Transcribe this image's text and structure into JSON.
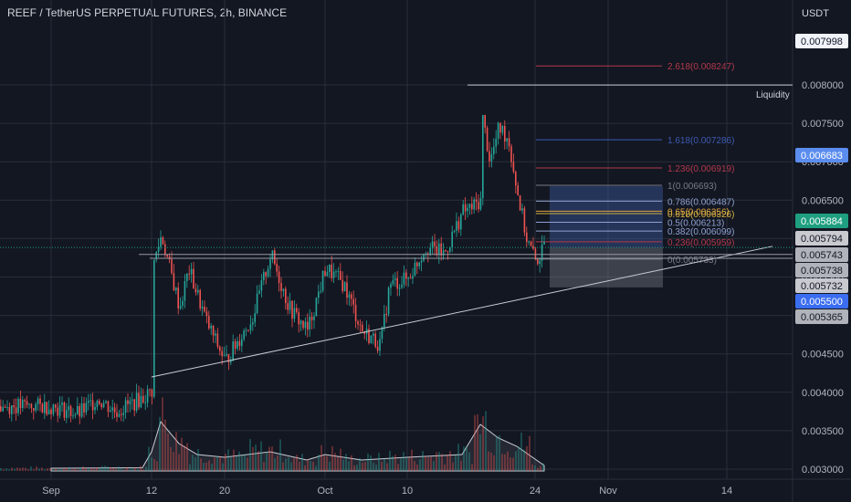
{
  "header": {
    "title": "REEF / TetherUS PERPETUAL FUTURES, 2h, BINANCE",
    "currency": "USDT"
  },
  "chart_data": {
    "type": "candlestick",
    "title": "REEF / TetherUS PERPETUAL FUTURES, 2h, BINANCE",
    "yaxis": {
      "unit": "USDT",
      "ticks": [
        "0.008000",
        "0.007500",
        "0.007000",
        "0.006500",
        "0.006000",
        "0.005500",
        "0.005000",
        "0.004500",
        "0.004000",
        "0.003500",
        "0.003000"
      ],
      "range": [
        0.0029,
        0.00835
      ]
    },
    "xaxis": {
      "ticks": [
        "Sep",
        "12",
        "20",
        "Oct",
        "10",
        "24",
        "Nov",
        "14"
      ]
    },
    "grid": true,
    "price_path": [
      {
        "x": "Sep 1",
        "y": 0.00382
      },
      {
        "x": "Sep 4",
        "y": 0.00372
      },
      {
        "x": "Sep 6",
        "y": 0.00392
      },
      {
        "x": "Sep 8",
        "y": 0.00375
      },
      {
        "x": "Sep 10",
        "y": 0.00387
      },
      {
        "x": "Sep 11",
        "y": 0.00393
      },
      {
        "x": "Sep 12",
        "y": 0.00402
      },
      {
        "x": "Sep 12",
        "y": 0.0056
      },
      {
        "x": "Sep 13",
        "y": 0.00605
      },
      {
        "x": "Sep 15",
        "y": 0.0051
      },
      {
        "x": "Sep 16",
        "y": 0.0056
      },
      {
        "x": "Sep 18",
        "y": 0.0049
      },
      {
        "x": "Sep 20",
        "y": 0.0044
      },
      {
        "x": "Sep 23",
        "y": 0.00498
      },
      {
        "x": "Sep 25",
        "y": 0.0058
      },
      {
        "x": "Sep 27",
        "y": 0.0051
      },
      {
        "x": "Sep 29",
        "y": 0.0048
      },
      {
        "x": "Oct 1",
        "y": 0.00562
      },
      {
        "x": "Oct 3",
        "y": 0.0054
      },
      {
        "x": "Oct 5",
        "y": 0.0048
      },
      {
        "x": "Oct 7",
        "y": 0.00462
      },
      {
        "x": "Oct 8",
        "y": 0.0054
      },
      {
        "x": "Oct 10",
        "y": 0.00548
      },
      {
        "x": "Oct 12",
        "y": 0.0059
      },
      {
        "x": "Oct 14",
        "y": 0.0058
      },
      {
        "x": "Oct 16",
        "y": 0.00635
      },
      {
        "x": "Oct 17",
        "y": 0.0064
      },
      {
        "x": "Oct 18",
        "y": 0.0065
      },
      {
        "x": "Oct 18",
        "y": 0.0077
      },
      {
        "x": "Oct 19",
        "y": 0.007
      },
      {
        "x": "Oct 20",
        "y": 0.00745
      },
      {
        "x": "Oct 21",
        "y": 0.0073
      },
      {
        "x": "Oct 22",
        "y": 0.0066
      },
      {
        "x": "Oct 23",
        "y": 0.006
      },
      {
        "x": "Oct 24",
        "y": 0.0057
      },
      {
        "x": "Oct 25",
        "y": 0.00588
      }
    ],
    "volume_series": [
      {
        "x": "Sep 1",
        "y": 0.05
      },
      {
        "x": "Sep 11",
        "y": 0.06
      },
      {
        "x": "Sep 12",
        "y": 0.35
      },
      {
        "x": "Sep 13",
        "y": 0.9
      },
      {
        "x": "Sep 15",
        "y": 0.5
      },
      {
        "x": "Sep 17",
        "y": 0.3
      },
      {
        "x": "Sep 20",
        "y": 0.25
      },
      {
        "x": "Sep 25",
        "y": 0.35
      },
      {
        "x": "Sep 29",
        "y": 0.2
      },
      {
        "x": "Oct 1",
        "y": 0.3
      },
      {
        "x": "Oct 5",
        "y": 0.2
      },
      {
        "x": "Oct 10",
        "y": 0.25
      },
      {
        "x": "Oct 16",
        "y": 0.3
      },
      {
        "x": "Oct 18",
        "y": 0.85
      },
      {
        "x": "Oct 20",
        "y": 0.6
      },
      {
        "x": "Oct 22",
        "y": 0.45
      },
      {
        "x": "Oct 25",
        "y": 0.1
      }
    ],
    "fib_levels": [
      {
        "ratio": "2.618",
        "price": "0.008247",
        "color": "#b2384a"
      },
      {
        "ratio": "1.618",
        "price": "0.007286",
        "color": "#3d5ab0"
      },
      {
        "ratio": "1.236",
        "price": "0.006919",
        "color": "#b2384a"
      },
      {
        "ratio": "1",
        "price": "0.006693",
        "color": "#787b86"
      },
      {
        "ratio": "0.786",
        "price": "0.006487",
        "color": "#8ea0d0"
      },
      {
        "ratio": "0.65",
        "price": "0.006356",
        "color": "#e0a040"
      },
      {
        "ratio": "0.618",
        "price": "0.006326",
        "color": "#d0b040"
      },
      {
        "ratio": "0.5",
        "price": "0.006213",
        "color": "#8ea0d0"
      },
      {
        "ratio": "0.382",
        "price": "0.006099",
        "color": "#8ea0d0"
      },
      {
        "ratio": "0.236",
        "price": "0.005959",
        "color": "#b2384a"
      },
      {
        "ratio": "0",
        "price": "0.005733",
        "color": "#787b86"
      }
    ],
    "annotations": {
      "liquidity_label": "Liquidity",
      "liquidity_price": 0.007998
    },
    "trendline": {
      "from": {
        "x": "Sep 12",
        "y": 0.0042
      },
      "to": {
        "x": "Nov 19",
        "y": 0.0059
      }
    },
    "position_tool": {
      "entry": 0.005884,
      "target": 0.006683,
      "stop": 0.005365,
      "x_from": "Oct 25",
      "x_to": "Nov 7"
    },
    "price_tags": [
      {
        "label": "0.007998",
        "bg": "#f0f3fa",
        "fg": "#131722",
        "price": 0.007998
      },
      {
        "label": "0.006683",
        "bg": "#5b8def",
        "fg": "#ffffff",
        "price": 0.006683
      },
      {
        "label": "0.005884",
        "bg": "#1e9f80",
        "fg": "#ffffff",
        "price": 0.005884
      },
      {
        "label": "0.005794",
        "bg": "#c8cad0",
        "fg": "#131722",
        "price": 0.005794
      },
      {
        "label": "0.005743",
        "bg": "#b0b3ba",
        "fg": "#131722",
        "price": 0.005743
      },
      {
        "label": "0.005738",
        "bg": "#b0b3ba",
        "fg": "#131722",
        "price": 0.005738
      },
      {
        "label": "0.005732",
        "bg": "#c8cad0",
        "fg": "#131722",
        "price": 0.005732
      },
      {
        "label": "0.005500",
        "bg": "#3a6df0",
        "fg": "#ffffff",
        "price": 0.0055
      },
      {
        "label": "0.005365",
        "bg": "#b0b3ba",
        "fg": "#131722",
        "price": 0.005365
      }
    ],
    "colors": {
      "up": "#26a69a",
      "down": "#ef5350",
      "grid": "#2a2e39",
      "profit_zone": "#3b5c9e",
      "loss_zone": "#8a8f99"
    }
  }
}
